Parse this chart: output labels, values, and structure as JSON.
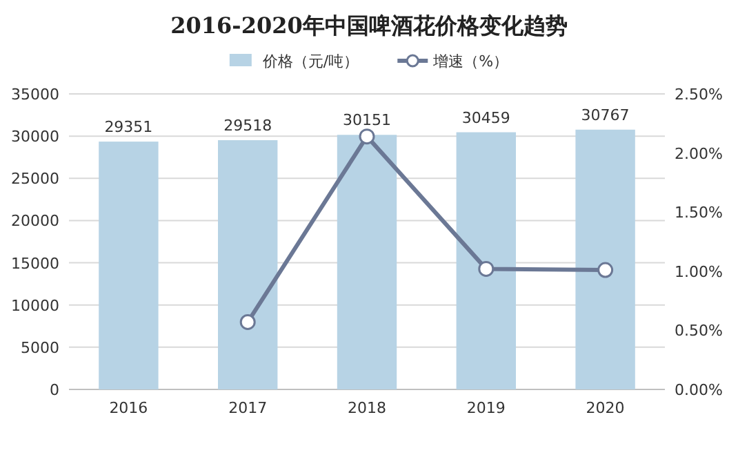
{
  "chart_data": {
    "type": "bar",
    "title": "2016-2020年中国啤酒花价格变化趋势",
    "categories": [
      "2016",
      "2017",
      "2018",
      "2019",
      "2020"
    ],
    "series": [
      {
        "name": "价格（元/吨）",
        "color": "#b7d3e5",
        "values": [
          29351,
          29518,
          30151,
          30459,
          30767
        ],
        "value_labels": [
          "29351",
          "29518",
          "30151",
          "30459",
          "30767"
        ]
      },
      {
        "name": "增速（%）",
        "type": "line",
        "axis": "y2",
        "color": "#6b7895",
        "marker": "circle",
        "values": [
          null,
          0.57,
          2.14,
          1.02,
          1.01
        ]
      }
    ],
    "ylim": [
      0,
      35000
    ],
    "yticks": [
      0,
      5000,
      10000,
      15000,
      20000,
      25000,
      30000,
      35000
    ],
    "y2lim": [
      0,
      2.5
    ],
    "y2ticks": [
      {
        "value": 0,
        "label": "0.00%"
      },
      {
        "value": 0.5,
        "label": "0.50%"
      },
      {
        "value": 1,
        "label": "1.00%"
      },
      {
        "value": 1.5,
        "label": "1.50%"
      },
      {
        "value": 2,
        "label": "2.00%"
      },
      {
        "value": 2.5,
        "label": "2.50%"
      }
    ],
    "grid": "y",
    "legend": "top"
  }
}
